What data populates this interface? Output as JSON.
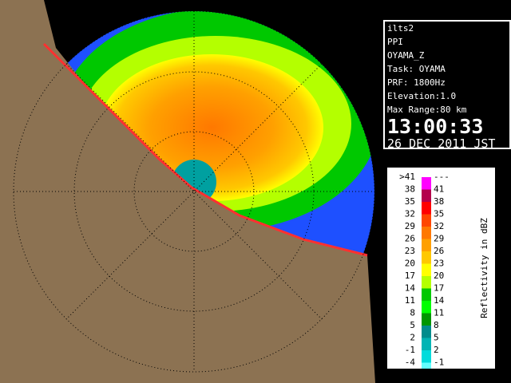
{
  "info": {
    "lines": [
      "ilts2",
      "PPI",
      "OYAMA_Z",
      "Task: OYAMA",
      "PRF: 1800Hz",
      "Elevation:1.0",
      "Max Range:80 km"
    ],
    "time": "13:00:33",
    "date": "26 DEC 2011 JST"
  },
  "colorbar": {
    "title": "Reflectivity in dBZ",
    "rows": [
      {
        "low": ">41",
        "high": "---",
        "color": "#ff00ff"
      },
      {
        "low": "38",
        "high": "41",
        "color": "#b4004b"
      },
      {
        "low": "35",
        "high": "38",
        "color": "#ff0000"
      },
      {
        "low": "32",
        "high": "35",
        "color": "#ff4600"
      },
      {
        "low": "29",
        "high": "32",
        "color": "#ff7800"
      },
      {
        "low": "26",
        "high": "29",
        "color": "#ffa000"
      },
      {
        "low": "23",
        "high": "26",
        "color": "#ffc800"
      },
      {
        "low": "20",
        "high": "23",
        "color": "#ffff00"
      },
      {
        "low": "17",
        "high": "20",
        "color": "#b4ff00"
      },
      {
        "low": "14",
        "high": "17",
        "color": "#00c800"
      },
      {
        "low": "11",
        "high": "14",
        "color": "#00ff00"
      },
      {
        "low": "8",
        "high": "11",
        "color": "#009600"
      },
      {
        "low": "5",
        "high": "8",
        "color": "#008c8c"
      },
      {
        "low": "2",
        "high": "5",
        "color": "#00b4b4"
      },
      {
        "low": "-1",
        "high": "2",
        "color": "#00dcdc"
      },
      {
        "low": "-4",
        "high": "-1",
        "color": "#64ffff"
      }
    ]
  }
}
